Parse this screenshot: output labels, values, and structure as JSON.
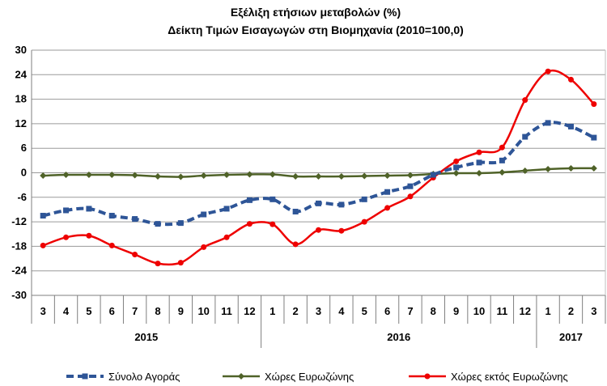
{
  "chart_data": {
    "type": "line",
    "title_line1": "Εξέλιξη ετήσιων μεταβολών (%)",
    "title_line2": "Δείκτη Τιμών Εισαγωγών στη Βιομηχανία (2010=100,0)",
    "x": [
      "3",
      "4",
      "5",
      "6",
      "7",
      "8",
      "9",
      "10",
      "11",
      "12",
      "1",
      "2",
      "3",
      "4",
      "5",
      "6",
      "7",
      "8",
      "9",
      "10",
      "11",
      "12",
      "1",
      "2",
      "3"
    ],
    "years": [
      {
        "label": "2015",
        "from": 0,
        "to": 9
      },
      {
        "label": "2016",
        "from": 10,
        "to": 21
      },
      {
        "label": "2017",
        "from": 22,
        "to": 24
      }
    ],
    "yticks": [
      "30",
      "24",
      "18",
      "12",
      "6",
      "0",
      "-6",
      "-12",
      "-18",
      "-24",
      "-30"
    ],
    "ylim": [
      -30,
      30
    ],
    "grid": true,
    "legend_position": "bottom",
    "series": [
      {
        "name": "Σύνολο Αγοράς",
        "color": "#2e5597",
        "style": "dashed",
        "marker": "square",
        "values": [
          -10.5,
          -9.2,
          -8.8,
          -10.5,
          -11.3,
          -12.5,
          -12.3,
          -10.2,
          -8.8,
          -6.7,
          -6.5,
          -9.5,
          -7.5,
          -7.8,
          -6.5,
          -4.7,
          -3.3,
          -0.5,
          1.3,
          2.5,
          3.0,
          8.8,
          12.2,
          11.3,
          8.6
        ]
      },
      {
        "name": "Χώρες Ευρωζώνης",
        "color": "#4f6228",
        "style": "solid",
        "marker": "diamond",
        "values": [
          -0.7,
          -0.5,
          -0.5,
          -0.5,
          -0.6,
          -0.9,
          -1.0,
          -0.7,
          -0.5,
          -0.4,
          -0.4,
          -0.9,
          -0.9,
          -0.9,
          -0.8,
          -0.7,
          -0.6,
          -0.3,
          -0.1,
          -0.1,
          0.1,
          0.5,
          0.9,
          1.1,
          1.1
        ]
      },
      {
        "name": "Χώρες εκτός Ευρωζώνης",
        "color": "#ee0000",
        "style": "solid",
        "marker": "circle",
        "values": [
          -17.8,
          -15.8,
          -15.4,
          -17.8,
          -20.0,
          -22.2,
          -22.0,
          -18.2,
          -15.8,
          -12.5,
          -12.6,
          -17.5,
          -14.0,
          -14.2,
          -12.0,
          -8.6,
          -5.8,
          -1.2,
          2.8,
          5.0,
          6.2,
          17.8,
          24.8,
          22.8,
          16.8
        ]
      }
    ]
  }
}
